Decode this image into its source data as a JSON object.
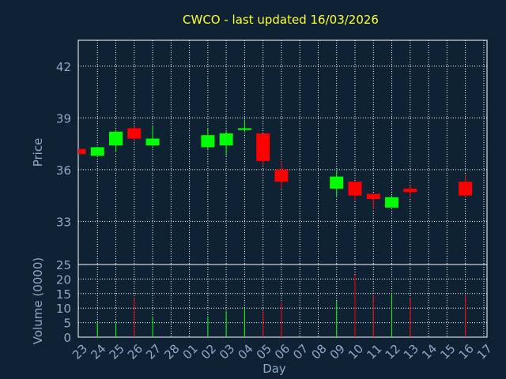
{
  "chart_data": {
    "type": "candlestick",
    "title": "CWCO - last updated 16/03/2026",
    "xlabel": "Day",
    "categories": [
      "23",
      "24",
      "25",
      "26",
      "27",
      "28",
      "01",
      "02",
      "03",
      "04",
      "05",
      "06",
      "07",
      "08",
      "09",
      "10",
      "11",
      "12",
      "13",
      "14",
      "15",
      "16",
      "17"
    ],
    "price_panel": {
      "ylabel": "Price",
      "ylim": [
        30.5,
        43.5
      ],
      "yticks": [
        33,
        36,
        39,
        42
      ],
      "grid": true,
      "candles": [
        {
          "x": "23",
          "open": 37.2,
          "close": 36.9,
          "high": 37.2,
          "low": 36.9
        },
        {
          "x": "24",
          "open": 36.8,
          "close": 37.3,
          "high": 37.3,
          "low": 36.8
        },
        {
          "x": "25",
          "open": 37.4,
          "close": 38.2,
          "high": 38.3,
          "low": 37.0
        },
        {
          "x": "26",
          "open": 38.4,
          "close": 37.8,
          "high": 38.5,
          "low": 37.7
        },
        {
          "x": "27",
          "open": 37.4,
          "close": 37.8,
          "high": 38.5,
          "low": 37.3
        },
        {
          "x": "02",
          "open": 37.3,
          "close": 38.0,
          "high": 38.4,
          "low": 37.2
        },
        {
          "x": "03",
          "open": 37.4,
          "close": 38.1,
          "high": 38.3,
          "low": 36.8
        },
        {
          "x": "04",
          "open": 38.3,
          "close": 38.4,
          "high": 38.9,
          "low": 38.2
        },
        {
          "x": "05",
          "open": 38.1,
          "close": 36.5,
          "high": 38.1,
          "low": 36.2
        },
        {
          "x": "06",
          "open": 36.0,
          "close": 35.3,
          "high": 36.5,
          "low": 34.9
        },
        {
          "x": "09",
          "open": 34.9,
          "close": 35.6,
          "high": 36.0,
          "low": 34.4
        },
        {
          "x": "10",
          "open": 35.3,
          "close": 34.5,
          "high": 35.3,
          "low": 34.2
        },
        {
          "x": "11",
          "open": 34.6,
          "close": 34.3,
          "high": 34.6,
          "low": 33.7
        },
        {
          "x": "12",
          "open": 33.8,
          "close": 34.4,
          "high": 34.5,
          "low": 33.8
        },
        {
          "x": "13",
          "open": 34.9,
          "close": 34.7,
          "high": 35.1,
          "low": 34.4
        },
        {
          "x": "16",
          "open": 35.3,
          "close": 34.5,
          "high": 35.7,
          "low": 34.4
        }
      ]
    },
    "volume_panel": {
      "ylabel": "Volume (0000)",
      "ylim": [
        0,
        25
      ],
      "yticks": [
        0,
        5,
        10,
        15,
        20,
        25
      ],
      "bars": [
        {
          "x": "24",
          "value": 5,
          "direction": "up"
        },
        {
          "x": "25",
          "value": 5,
          "direction": "up"
        },
        {
          "x": "26",
          "value": 13.5,
          "direction": "down"
        },
        {
          "x": "27",
          "value": 7,
          "direction": "up"
        },
        {
          "x": "02",
          "value": 7,
          "direction": "up"
        },
        {
          "x": "03",
          "value": 9,
          "direction": "up"
        },
        {
          "x": "04",
          "value": 10,
          "direction": "up"
        },
        {
          "x": "05",
          "value": 9,
          "direction": "down"
        },
        {
          "x": "06",
          "value": 12,
          "direction": "down"
        },
        {
          "x": "09",
          "value": 12.5,
          "direction": "up"
        },
        {
          "x": "10",
          "value": 21.5,
          "direction": "down"
        },
        {
          "x": "11",
          "value": 14.5,
          "direction": "down"
        },
        {
          "x": "12",
          "value": 15,
          "direction": "up"
        },
        {
          "x": "13",
          "value": 13.5,
          "direction": "down"
        },
        {
          "x": "16",
          "value": 14.5,
          "direction": "down"
        }
      ]
    },
    "colors": {
      "background": "#0f2233",
      "up": "#00ff00",
      "down": "#ff0000",
      "grid": "#ffffff",
      "title": "#ffff33",
      "labels": "#8fa8c8"
    }
  }
}
